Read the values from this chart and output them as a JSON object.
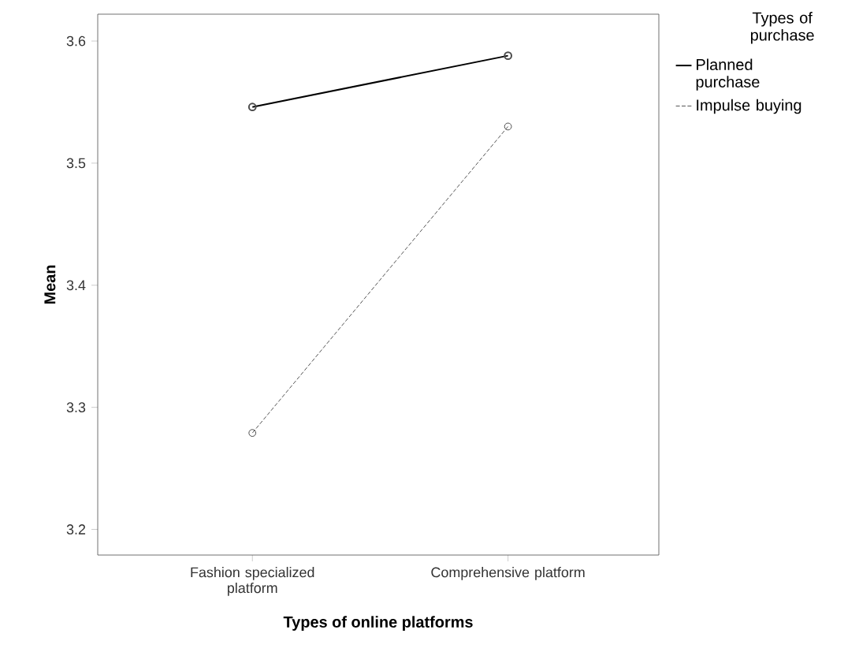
{
  "chart_data": {
    "type": "line",
    "xlabel": "Types of online platforms",
    "ylabel": "Mean",
    "legend_title": "Types of purchase",
    "categories": [
      "Fashion specialized platform",
      "Comprehensive platform"
    ],
    "series": [
      {
        "name": "Planned purchase",
        "color": "#000000",
        "line_style": "solid",
        "values": [
          3.546,
          3.588
        ]
      },
      {
        "name": "Impulse buying",
        "color": "#555555",
        "line_style": "dashed",
        "values": [
          3.279,
          3.53
        ]
      }
    ],
    "ylim": [
      3.179,
      3.622
    ],
    "yticks": [
      3.2,
      3.3,
      3.4,
      3.5,
      3.6
    ],
    "marker": "circle",
    "grid": false,
    "legend": "top right"
  }
}
